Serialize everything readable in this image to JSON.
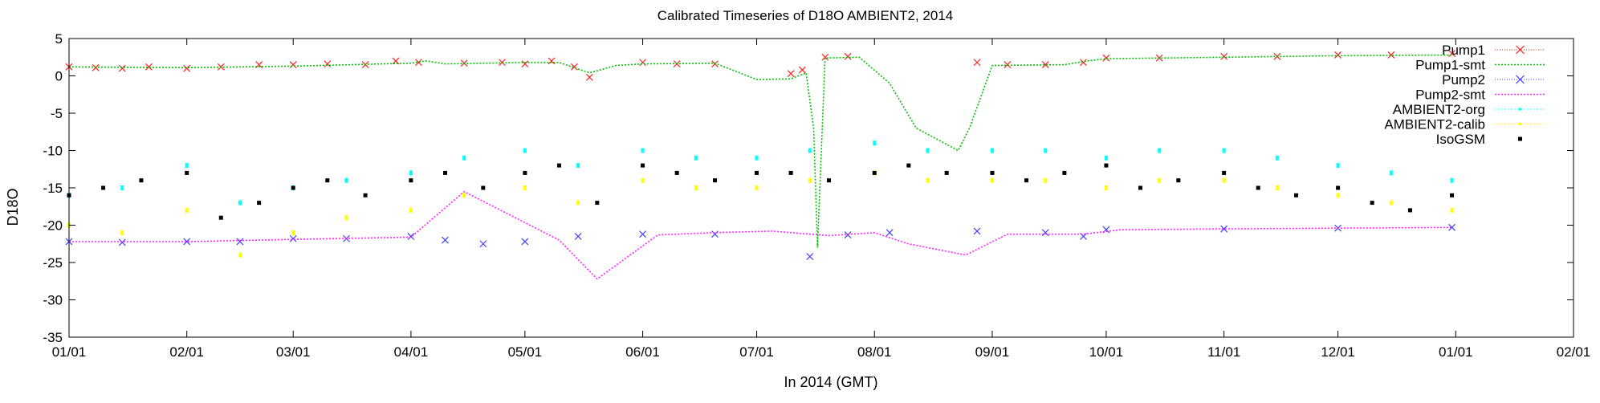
{
  "chart_data": {
    "type": "line",
    "title": "Calibrated Timeseries of D18O AMBIENT2, 2014",
    "xlabel": "In 2014 (GMT)",
    "ylabel": "D18O",
    "xlim": [
      "2014-01-01",
      "2015-02-01"
    ],
    "ylim": [
      -35,
      5
    ],
    "x_ticks": [
      "01/01",
      "02/01",
      "03/01",
      "04/01",
      "05/01",
      "06/01",
      "07/01",
      "08/01",
      "09/01",
      "10/01",
      "11/01",
      "12/01",
      "01/01",
      "02/01"
    ],
    "y_ticks": [
      5,
      0,
      -5,
      -10,
      -15,
      -20,
      -25,
      -30,
      -35
    ],
    "grid": false,
    "legend_position": "top-right",
    "series": [
      {
        "name": "Pump1",
        "style": "points-x",
        "color": "#ff2020",
        "x": [
          "2014-01-01",
          "2014-01-08",
          "2014-01-15",
          "2014-01-22",
          "2014-02-01",
          "2014-02-10",
          "2014-02-20",
          "2014-03-01",
          "2014-03-10",
          "2014-03-20",
          "2014-03-28",
          "2014-04-03",
          "2014-04-15",
          "2014-04-25",
          "2014-05-01",
          "2014-05-08",
          "2014-05-14",
          "2014-05-18",
          "2014-06-01",
          "2014-06-10",
          "2014-06-20",
          "2014-07-10",
          "2014-07-13",
          "2014-07-19",
          "2014-07-25",
          "2014-08-28",
          "2014-09-05",
          "2014-09-15",
          "2014-09-25",
          "2014-10-01",
          "2014-10-15",
          "2014-11-01",
          "2014-11-15",
          "2014-12-01",
          "2014-12-15",
          "2014-12-31"
        ],
        "values": [
          1.2,
          1.1,
          1.0,
          1.2,
          1.0,
          1.2,
          1.5,
          1.5,
          1.6,
          1.5,
          2.0,
          1.8,
          1.7,
          1.8,
          1.6,
          2.0,
          1.2,
          -0.2,
          1.8,
          1.6,
          1.6,
          0.3,
          0.8,
          2.5,
          2.6,
          1.8,
          1.5,
          1.5,
          1.8,
          2.4,
          2.4,
          2.6,
          2.6,
          2.8,
          2.8,
          3.0
        ]
      },
      {
        "name": "Pump1-smt",
        "style": "dotted-line",
        "color": "#00c000",
        "x": [
          "2014-01-01",
          "2014-02-01",
          "2014-03-01",
          "2014-04-01",
          "2014-04-05",
          "2014-04-10",
          "2014-05-01",
          "2014-05-10",
          "2014-05-18",
          "2014-05-25",
          "2014-06-01",
          "2014-06-20",
          "2014-07-01",
          "2014-07-10",
          "2014-07-14",
          "2014-07-16",
          "2014-07-17",
          "2014-07-19",
          "2014-07-28",
          "2014-08-05",
          "2014-08-12",
          "2014-08-23",
          "2014-08-26",
          "2014-09-01",
          "2014-09-20",
          "2014-09-26",
          "2014-10-01",
          "2014-11-01",
          "2014-12-01",
          "2014-12-31"
        ],
        "values": [
          1.2,
          1.1,
          1.3,
          1.7,
          2.0,
          1.6,
          1.8,
          1.8,
          0.4,
          1.4,
          1.6,
          1.7,
          -0.5,
          -0.4,
          0.4,
          -7,
          -23,
          2.4,
          2.5,
          -1,
          -7,
          -10,
          -7,
          1.4,
          1.5,
          2.0,
          2.3,
          2.5,
          2.7,
          2.8
        ]
      },
      {
        "name": "Pump2",
        "style": "points-x",
        "color": "#4040ff",
        "x": [
          "2014-01-01",
          "2014-01-15",
          "2014-02-01",
          "2014-02-15",
          "2014-03-01",
          "2014-03-15",
          "2014-04-01",
          "2014-04-10",
          "2014-04-20",
          "2014-05-01",
          "2014-05-15",
          "2014-06-01",
          "2014-06-20",
          "2014-07-15",
          "2014-07-25",
          "2014-08-05",
          "2014-08-28",
          "2014-09-15",
          "2014-09-25",
          "2014-10-01",
          "2014-11-01",
          "2014-12-01",
          "2014-12-31"
        ],
        "values": [
          -22.2,
          -22.3,
          -22.2,
          -22.2,
          -21.8,
          -21.8,
          -21.5,
          -22,
          -22.5,
          -22.2,
          -21.5,
          -21.2,
          -21.2,
          -24.2,
          -21.3,
          -21.0,
          -20.8,
          -21.0,
          -21.5,
          -20.6,
          -20.5,
          -20.4,
          -20.3
        ]
      },
      {
        "name": "Pump2-smt",
        "style": "dotted-line",
        "color": "#ff20ff",
        "x": [
          "2014-01-01",
          "2014-02-01",
          "2014-03-01",
          "2014-04-01",
          "2014-04-15",
          "2014-05-10",
          "2014-05-20",
          "2014-06-05",
          "2014-06-20",
          "2014-07-05",
          "2014-07-20",
          "2014-08-01",
          "2014-08-10",
          "2014-08-25",
          "2014-09-05",
          "2014-09-25",
          "2014-10-05",
          "2014-11-01",
          "2014-12-01",
          "2014-12-31"
        ],
        "values": [
          -22.2,
          -22.2,
          -21.9,
          -21.6,
          -15.5,
          -22,
          -27.2,
          -21.3,
          -21.0,
          -20.8,
          -21.4,
          -21.0,
          -22.5,
          -24.0,
          -21.2,
          -21.2,
          -20.6,
          -20.5,
          -20.4,
          -20.3
        ]
      },
      {
        "name": "AMBIENT2-org",
        "style": "points-dot",
        "color": "#00ffff",
        "x": [
          "2014-01-01",
          "2014-01-15",
          "2014-02-01",
          "2014-02-15",
          "2014-03-01",
          "2014-03-15",
          "2014-04-01",
          "2014-04-15",
          "2014-05-01",
          "2014-05-15",
          "2014-06-01",
          "2014-06-15",
          "2014-07-01",
          "2014-07-15",
          "2014-08-01",
          "2014-08-15",
          "2014-09-01",
          "2014-09-15",
          "2014-10-01",
          "2014-10-15",
          "2014-11-01",
          "2014-11-15",
          "2014-12-01",
          "2014-12-15",
          "2014-12-31"
        ],
        "values": [
          -16,
          -15,
          -12,
          -17,
          -15,
          -14,
          -13,
          -11,
          -10,
          -12,
          -10,
          -11,
          -11,
          -10,
          -9,
          -10,
          -10,
          -10,
          -11,
          -10,
          -10,
          -11,
          -12,
          -13,
          -14
        ]
      },
      {
        "name": "AMBIENT2-calib",
        "style": "points-dot",
        "color": "#ffff00",
        "x": [
          "2014-01-01",
          "2014-01-15",
          "2014-02-01",
          "2014-02-15",
          "2014-03-01",
          "2014-03-15",
          "2014-04-01",
          "2014-04-15",
          "2014-05-01",
          "2014-05-15",
          "2014-06-01",
          "2014-06-15",
          "2014-07-01",
          "2014-07-15",
          "2014-08-01",
          "2014-08-15",
          "2014-09-01",
          "2014-09-15",
          "2014-10-01",
          "2014-10-15",
          "2014-11-01",
          "2014-11-15",
          "2014-12-01",
          "2014-12-15",
          "2014-12-31"
        ],
        "values": [
          -20,
          -21,
          -18,
          -24,
          -21,
          -19,
          -18,
          -16,
          -15,
          -17,
          -14,
          -15,
          -15,
          -14,
          -13,
          -14,
          -14,
          -14,
          -15,
          -14,
          -14,
          -15,
          -16,
          -17,
          -18
        ]
      },
      {
        "name": "IsoGSM",
        "style": "points-square",
        "color": "#000000",
        "x": [
          "2014-01-01",
          "2014-01-10",
          "2014-01-20",
          "2014-02-01",
          "2014-02-10",
          "2014-02-20",
          "2014-03-01",
          "2014-03-10",
          "2014-03-20",
          "2014-04-01",
          "2014-04-10",
          "2014-04-20",
          "2014-05-01",
          "2014-05-10",
          "2014-05-20",
          "2014-06-01",
          "2014-06-10",
          "2014-06-20",
          "2014-07-01",
          "2014-07-10",
          "2014-07-20",
          "2014-08-01",
          "2014-08-10",
          "2014-08-20",
          "2014-09-01",
          "2014-09-10",
          "2014-09-20",
          "2014-10-01",
          "2014-10-10",
          "2014-10-20",
          "2014-11-01",
          "2014-11-10",
          "2014-11-20",
          "2014-12-01",
          "2014-12-10",
          "2014-12-20",
          "2014-12-31"
        ],
        "values": [
          -16,
          -15,
          -14,
          -13,
          -19,
          -17,
          -15,
          -14,
          -16,
          -14,
          -13,
          -15,
          -13,
          -12,
          -17,
          -12,
          -13,
          -14,
          -13,
          -13,
          -14,
          -13,
          -12,
          -13,
          -13,
          -14,
          -13,
          -12,
          -15,
          -14,
          -13,
          -15,
          -16,
          -15,
          -17,
          -18,
          -16
        ]
      }
    ]
  }
}
